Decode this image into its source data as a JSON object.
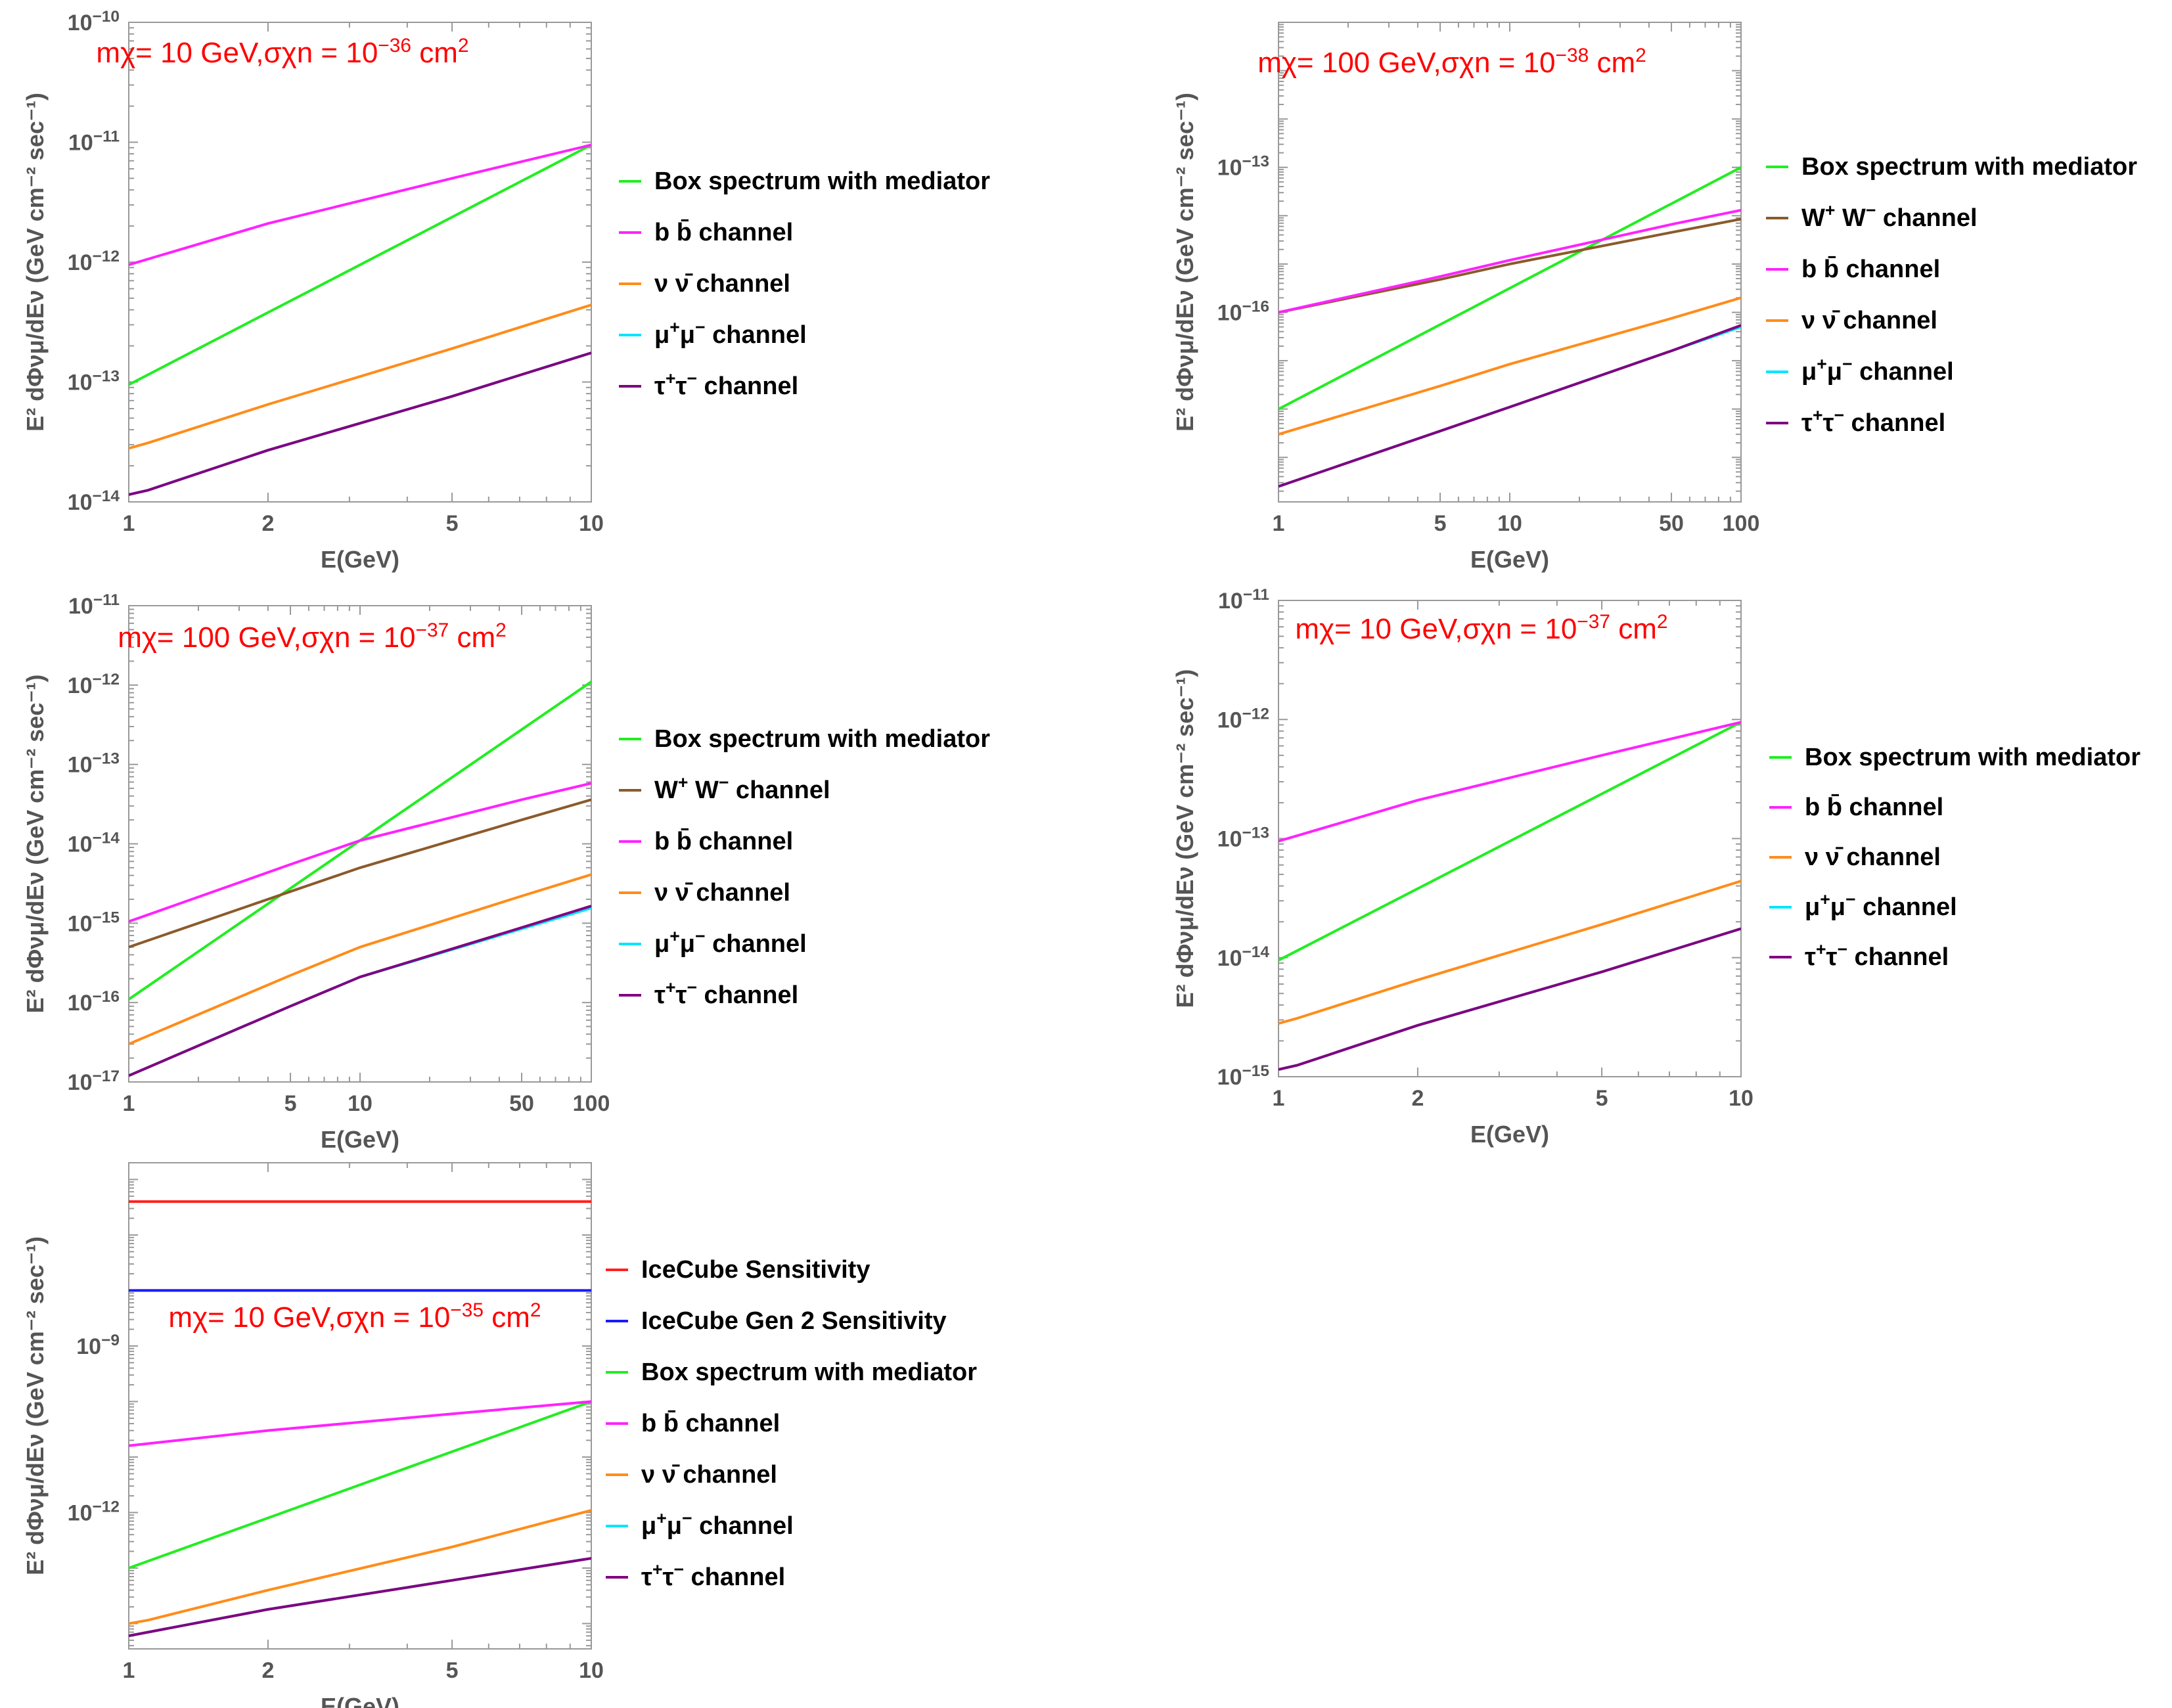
{
  "figure": {
    "layout": "five log-log panels in a 3-row grid (2 + 2 + 1)"
  },
  "chart_data": [
    {
      "type": "line",
      "panel": "top-left",
      "annotation": "mχ= 10 GeV,σχn = 10⁻³⁶ cm²",
      "xlabel": "E(GeV)",
      "ylabel": "E² dΦνμ/dEν (GeV cm⁻² sec⁻¹)",
      "xscale": "log",
      "yscale": "log",
      "xlim": [
        1,
        10
      ],
      "ylim": [
        1e-14,
        1e-10
      ],
      "xticks": [
        1,
        2,
        5,
        10
      ],
      "xtick_labels": [
        "1",
        "2",
        "5",
        "10"
      ],
      "yticks": [
        1e-14,
        1e-13,
        1e-12,
        1e-11,
        1e-10
      ],
      "ytick_labels": [
        [
          "10",
          "−14"
        ],
        [
          "10",
          "−13"
        ],
        [
          "10",
          "−12"
        ],
        [
          "10",
          "−11"
        ],
        [
          "10",
          "−10"
        ]
      ],
      "series": [
        {
          "name": "Box spectrum with mediator",
          "color": "#22ee22",
          "points": [
            [
              1,
              9.5e-14
            ],
            [
              10,
              9.5e-12
            ]
          ]
        },
        {
          "name": "b b̄ channel",
          "color": "#ff22ff",
          "points": [
            [
              1,
              9.5e-13
            ],
            [
              2,
              2.1e-12
            ],
            [
              5,
              5e-12
            ],
            [
              10,
              9.5e-12
            ]
          ]
        },
        {
          "name": "ν ν̄ channel",
          "color": "#ff8c1a",
          "points": [
            [
              1,
              2.8e-14
            ],
            [
              1.1,
              3.1e-14
            ],
            [
              2,
              6.5e-14
            ],
            [
              5,
              1.9e-13
            ],
            [
              10,
              4.4e-13
            ]
          ]
        },
        {
          "name": "μ⁺μ⁻ channel",
          "color": "#00e5ff",
          "points": [
            [
              1,
              1.15e-14
            ],
            [
              1.1,
              1.25e-14
            ],
            [
              2,
              2.7e-14
            ],
            [
              5,
              7.6e-14
            ],
            [
              10,
              1.75e-13
            ]
          ]
        },
        {
          "name": "τ⁺τ⁻ channel",
          "color": "#800080",
          "points": [
            [
              1,
              1.15e-14
            ],
            [
              1.1,
              1.25e-14
            ],
            [
              2,
              2.7e-14
            ],
            [
              5,
              7.6e-14
            ],
            [
              10,
              1.75e-13
            ]
          ]
        }
      ],
      "legend": [
        "Box spectrum with mediator",
        "b b̄ channel",
        "ν ν̄ channel",
        "μ⁺μ⁻ channel",
        "τ⁺τ⁻ channel"
      ]
    },
    {
      "type": "line",
      "panel": "top-right",
      "annotation": "mχ= 100 GeV,σχn = 10⁻³⁸ cm²",
      "xlabel": "E(GeV)",
      "ylabel": "E² dΦνμ/dEν (GeV cm⁻² sec⁻¹)",
      "xscale": "log",
      "yscale": "log",
      "xlim": [
        1,
        100
      ],
      "ylim": [
        1.2e-20,
        1e-10
      ],
      "xticks": [
        1,
        5,
        10,
        50,
        100
      ],
      "xtick_labels": [
        "1",
        "5",
        "10",
        "50",
        "100"
      ],
      "yticks": [
        1e-16,
        1e-13
      ],
      "ytick_labels": [
        [
          "10",
          "−16"
        ],
        [
          "10",
          "−13"
        ]
      ],
      "series": [
        {
          "name": "Box spectrum with mediator",
          "color": "#22ee22",
          "points": [
            [
              1,
              1e-18
            ],
            [
              100,
              1e-13
            ]
          ]
        },
        {
          "name": "W⁺ W⁻ channel",
          "color": "#8b5a2b",
          "points": [
            [
              1,
              1e-16
            ],
            [
              5,
              4.8e-16
            ],
            [
              10,
              1e-15
            ],
            [
              50,
              4.5e-15
            ],
            [
              100,
              8.5e-15
            ]
          ]
        },
        {
          "name": "b b̄ channel",
          "color": "#ff22ff",
          "points": [
            [
              1,
              1e-16
            ],
            [
              5,
              5.5e-16
            ],
            [
              10,
              1.2e-15
            ],
            [
              50,
              6.6e-15
            ],
            [
              100,
              1.3e-14
            ]
          ]
        },
        {
          "name": "ν ν̄ channel",
          "color": "#ff8c1a",
          "points": [
            [
              1,
              3e-19
            ],
            [
              5,
              3e-18
            ],
            [
              10,
              8.5e-18
            ],
            [
              50,
              7.5e-17
            ],
            [
              100,
              2e-16
            ]
          ]
        },
        {
          "name": "μ⁺μ⁻ channel",
          "color": "#00e5ff",
          "points": [
            [
              1,
              2.5e-20
            ],
            [
              5,
              3.5e-19
            ],
            [
              10,
              1.1e-18
            ],
            [
              50,
              1.6e-17
            ],
            [
              100,
              5e-17
            ]
          ]
        },
        {
          "name": "τ⁺τ⁻ channel",
          "color": "#800080",
          "points": [
            [
              1,
              2.5e-20
            ],
            [
              5,
              3.5e-19
            ],
            [
              10,
              1.1e-18
            ],
            [
              50,
              1.6e-17
            ],
            [
              100,
              5.4e-17
            ]
          ]
        }
      ],
      "legend": [
        "Box spectrum with mediator",
        "W⁺ W⁻ channel",
        "b b̄ channel",
        "ν ν̄ channel",
        "μ⁺μ⁻ channel",
        "τ⁺τ⁻ channel"
      ]
    },
    {
      "type": "line",
      "panel": "middle-left",
      "annotation": "mχ= 100 GeV,σχn = 10⁻³⁷ cm²",
      "xlabel": "E(GeV)",
      "ylabel": "E² dΦνμ/dEν (GeV cm⁻² sec⁻¹)",
      "xscale": "log",
      "yscale": "log",
      "xlim": [
        1,
        100
      ],
      "ylim": [
        1e-17,
        1e-11
      ],
      "xticks": [
        1,
        5,
        10,
        50,
        100
      ],
      "xtick_labels": [
        "1",
        "5",
        "10",
        "50",
        "100"
      ],
      "yticks": [
        1e-17,
        1e-16,
        1e-15,
        1e-14,
        1e-13,
        1e-12,
        1e-11
      ],
      "ytick_labels": [
        [
          "10",
          "−17"
        ],
        [
          "10",
          "−16"
        ],
        [
          "10",
          "−15"
        ],
        [
          "10",
          "−14"
        ],
        [
          "10",
          "−13"
        ],
        [
          "10",
          "−12"
        ],
        [
          "10",
          "−11"
        ]
      ],
      "series": [
        {
          "name": "Box spectrum with mediator",
          "color": "#22ee22",
          "points": [
            [
              1,
              1.1e-16
            ],
            [
              100,
              1.1e-12
            ]
          ]
        },
        {
          "name": "W⁺ W⁻ channel",
          "color": "#8b5a2b",
          "points": [
            [
              1,
              5e-16
            ],
            [
              5,
              2.5e-15
            ],
            [
              10,
              5e-15
            ],
            [
              50,
              2e-14
            ],
            [
              100,
              3.6e-14
            ]
          ]
        },
        {
          "name": "b b̄ channel",
          "color": "#ff22ff",
          "points": [
            [
              1,
              1.05e-15
            ],
            [
              5,
              5.5e-15
            ],
            [
              10,
              1.1e-14
            ],
            [
              50,
              3.6e-14
            ],
            [
              100,
              5.8e-14
            ]
          ]
        },
        {
          "name": "ν ν̄ channel",
          "color": "#ff8c1a",
          "points": [
            [
              1,
              3e-17
            ],
            [
              5,
              2.2e-16
            ],
            [
              10,
              5e-16
            ],
            [
              50,
              2.2e-15
            ],
            [
              100,
              4.1e-15
            ]
          ]
        },
        {
          "name": "μ⁺μ⁻ channel",
          "color": "#00e5ff",
          "points": [
            [
              1,
              1.2e-17
            ],
            [
              5,
              9e-17
            ],
            [
              10,
              2.1e-16
            ],
            [
              50,
              8.5e-16
            ],
            [
              100,
              1.55e-15
            ]
          ]
        },
        {
          "name": "τ⁺τ⁻ channel",
          "color": "#800080",
          "points": [
            [
              1,
              1.2e-17
            ],
            [
              5,
              9e-17
            ],
            [
              10,
              2.1e-16
            ],
            [
              50,
              8.8e-16
            ],
            [
              100,
              1.65e-15
            ]
          ]
        }
      ],
      "legend": [
        "Box spectrum with mediator",
        "W⁺ W⁻ channel",
        "b b̄ channel",
        "ν ν̄ channel",
        "μ⁺μ⁻ channel",
        "τ⁺τ⁻ channel"
      ]
    },
    {
      "type": "line",
      "panel": "middle-right",
      "annotation": "mχ= 10 GeV,σχn = 10⁻³⁷ cm²",
      "xlabel": "E(GeV)",
      "ylabel": "E² dΦνμ/dEν (GeV cm⁻² sec⁻¹)",
      "xscale": "log",
      "yscale": "log",
      "xlim": [
        1,
        10
      ],
      "ylim": [
        1e-15,
        1e-11
      ],
      "xticks": [
        1,
        2,
        5,
        10
      ],
      "xtick_labels": [
        "1",
        "2",
        "5",
        "10"
      ],
      "yticks": [
        1e-15,
        1e-14,
        1e-13,
        1e-12,
        1e-11
      ],
      "ytick_labels": [
        [
          "10",
          "−15"
        ],
        [
          "10",
          "−14"
        ],
        [
          "10",
          "−13"
        ],
        [
          "10",
          "−12"
        ],
        [
          "10",
          "−11"
        ]
      ],
      "series": [
        {
          "name": "Box spectrum with mediator",
          "color": "#22ee22",
          "points": [
            [
              1,
              9.5e-15
            ],
            [
              10,
              9.5e-13
            ]
          ]
        },
        {
          "name": "b b̄ channel",
          "color": "#ff22ff",
          "points": [
            [
              1,
              9.5e-14
            ],
            [
              2,
              2.1e-13
            ],
            [
              5,
              5e-13
            ],
            [
              10,
              9.5e-13
            ]
          ]
        },
        {
          "name": "ν ν̄ channel",
          "color": "#ff8c1a",
          "points": [
            [
              1,
              2.8e-15
            ],
            [
              1.1,
              3.1e-15
            ],
            [
              2,
              6.5e-15
            ],
            [
              5,
              1.9e-14
            ],
            [
              10,
              4.4e-14
            ]
          ]
        },
        {
          "name": "μ⁺μ⁻ channel",
          "color": "#00e5ff",
          "points": [
            [
              1,
              1.15e-15
            ],
            [
              1.1,
              1.25e-15
            ],
            [
              2,
              2.7e-15
            ],
            [
              5,
              7.6e-15
            ],
            [
              10,
              1.75e-14
            ]
          ]
        },
        {
          "name": "τ⁺τ⁻ channel",
          "color": "#800080",
          "points": [
            [
              1,
              1.15e-15
            ],
            [
              1.1,
              1.25e-15
            ],
            [
              2,
              2.7e-15
            ],
            [
              5,
              7.6e-15
            ],
            [
              10,
              1.75e-14
            ]
          ]
        }
      ],
      "legend": [
        "Box spectrum with mediator",
        "b b̄ channel",
        "ν ν̄ channel",
        "μ⁺μ⁻ channel",
        "τ⁺τ⁻ channel"
      ]
    },
    {
      "type": "line",
      "panel": "bottom-left",
      "annotation": "mχ= 10 GeV,σχn = 10⁻³⁵ cm²",
      "xlabel": "E(GeV)",
      "ylabel": "E² dΦνμ/dEν (GeV cm⁻² sec⁻¹)",
      "xscale": "log",
      "yscale": "log",
      "xlim": [
        1,
        10
      ],
      "ylim": [
        3.5e-15,
        2e-06
      ],
      "xticks": [
        1,
        2,
        5,
        10
      ],
      "xtick_labels": [
        "1",
        "2",
        "5",
        "10"
      ],
      "yticks": [
        1e-12,
        1e-09
      ],
      "ytick_labels": [
        [
          "10",
          "−12"
        ],
        [
          "10",
          "−9"
        ]
      ],
      "series": [
        {
          "name": "IceCube Sensitivity",
          "color": "#ff2020",
          "points": [
            [
              1,
              4e-07
            ],
            [
              10,
              4e-07
            ]
          ]
        },
        {
          "name": "IceCube Gen 2 Sensitivity",
          "color": "#1a1aff",
          "points": [
            [
              1,
              1e-08
            ],
            [
              10,
              1e-08
            ]
          ]
        },
        {
          "name": "Box spectrum with mediator",
          "color": "#22ee22",
          "points": [
            [
              1,
              1e-13
            ],
            [
              10,
              1e-10
            ]
          ]
        },
        {
          "name": "b b̄ channel",
          "color": "#ff22ff",
          "points": [
            [
              1,
              1.6e-11
            ],
            [
              2,
              3e-11
            ],
            [
              5,
              6e-11
            ],
            [
              10,
              1e-10
            ]
          ]
        },
        {
          "name": "ν ν̄ channel",
          "color": "#ff8c1a",
          "points": [
            [
              1,
              1e-14
            ],
            [
              1.1,
              1.15e-14
            ],
            [
              2,
              4e-14
            ],
            [
              5,
              2.4e-13
            ],
            [
              10,
              1.1e-12
            ]
          ]
        },
        {
          "name": "μ⁺μ⁻ channel",
          "color": "#00e5ff",
          "points": [
            [
              1,
              6e-15
            ],
            [
              1.1,
              7e-15
            ],
            [
              2,
              1.8e-14
            ],
            [
              5,
              6e-14
            ],
            [
              10,
              1.5e-13
            ]
          ]
        },
        {
          "name": "τ⁺τ⁻ channel",
          "color": "#800080",
          "points": [
            [
              1,
              6e-15
            ],
            [
              1.1,
              7e-15
            ],
            [
              2,
              1.8e-14
            ],
            [
              5,
              6e-14
            ],
            [
              10,
              1.5e-13
            ]
          ]
        }
      ],
      "legend": [
        "IceCube Sensitivity",
        "IceCube Gen 2 Sensitivity",
        "Box spectrum with mediator",
        "b b̄ channel",
        "ν ν̄ channel",
        "μ⁺μ⁻ channel",
        "τ⁺τ⁻ channel"
      ]
    }
  ]
}
